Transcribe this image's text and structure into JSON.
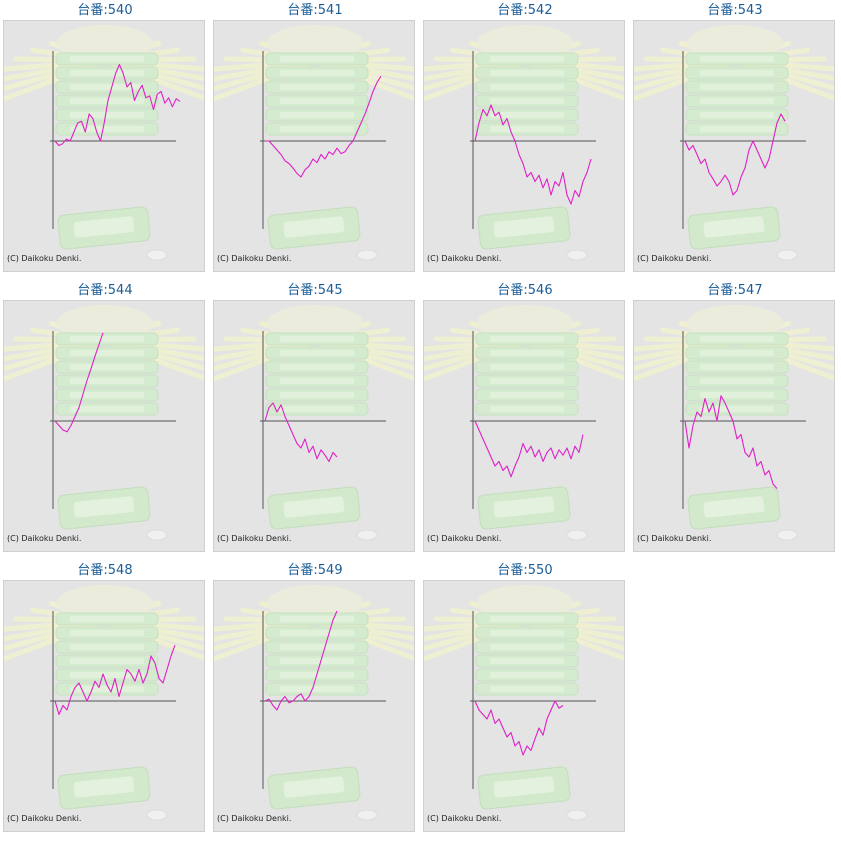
{
  "page": {
    "background": "#ffffff",
    "title_color": "#1b5d96",
    "line_color": "#e020c8"
  },
  "machines": [
    {
      "label": "台番:540",
      "credit": "(C) Daikoku Denki."
    },
    {
      "label": "台番:541",
      "credit": "(C) Daikoku Denki."
    },
    {
      "label": "台番:542",
      "credit": "(C) Daikoku Denki."
    },
    {
      "label": "台番:543",
      "credit": "(C) Daikoku Denki."
    },
    {
      "label": "台番:544",
      "credit": "(C) Daikoku Denki."
    },
    {
      "label": "台番:545",
      "credit": "(C) Daikoku Denki."
    },
    {
      "label": "台番:546",
      "credit": "(C) Daikoku Denki."
    },
    {
      "label": "台番:547",
      "credit": "(C) Daikoku Denki."
    },
    {
      "label": "台番:548",
      "credit": "(C) Daikoku Denki."
    },
    {
      "label": "台番:549",
      "credit": "(C) Daikoku Denki."
    },
    {
      "label": "台番:550",
      "credit": "(C) Daikoku Denki."
    }
  ],
  "chart_data": [
    {
      "type": "line",
      "title": "台番:540",
      "ylim": [
        -1.0,
        1.0
      ],
      "y": [
        0.0,
        -0.05,
        -0.03,
        0.02,
        0.0,
        0.1,
        0.2,
        0.22,
        0.1,
        0.3,
        0.25,
        0.1,
        0.0,
        0.2,
        0.45,
        0.6,
        0.75,
        0.85,
        0.75,
        0.6,
        0.65,
        0.45,
        0.55,
        0.62,
        0.48,
        0.5,
        0.35,
        0.52,
        0.55,
        0.42,
        0.48,
        0.38,
        0.47,
        0.44
      ]
    },
    {
      "type": "line",
      "title": "台番:541",
      "ylim": [
        -1.0,
        1.0
      ],
      "y": [
        0.0,
        0.0,
        -0.05,
        -0.1,
        -0.15,
        -0.22,
        -0.25,
        -0.3,
        -0.36,
        -0.4,
        -0.32,
        -0.28,
        -0.2,
        -0.24,
        -0.15,
        -0.2,
        -0.12,
        -0.15,
        -0.08,
        -0.14,
        -0.12,
        -0.05,
        0.0,
        0.1,
        0.2,
        0.3,
        0.42,
        0.55,
        0.65,
        0.72
      ]
    },
    {
      "type": "line",
      "title": "台番:542",
      "ylim": [
        -1.0,
        1.0
      ],
      "y": [
        0.0,
        0.2,
        0.35,
        0.28,
        0.4,
        0.28,
        0.32,
        0.18,
        0.25,
        0.1,
        0.0,
        -0.15,
        -0.25,
        -0.4,
        -0.35,
        -0.45,
        -0.38,
        -0.52,
        -0.42,
        -0.6,
        -0.45,
        -0.5,
        -0.35,
        -0.6,
        -0.7,
        -0.55,
        -0.62,
        -0.45,
        -0.35,
        -0.2
      ]
    },
    {
      "type": "line",
      "title": "台番:543",
      "ylim": [
        -1.0,
        1.0
      ],
      "y": [
        0.0,
        -0.1,
        -0.05,
        -0.15,
        -0.25,
        -0.2,
        -0.35,
        -0.42,
        -0.5,
        -0.45,
        -0.38,
        -0.45,
        -0.6,
        -0.55,
        -0.4,
        -0.3,
        -0.1,
        0.0,
        -0.1,
        -0.2,
        -0.3,
        -0.2,
        0.0,
        0.2,
        0.3,
        0.22
      ]
    },
    {
      "type": "line",
      "title": "台番:544",
      "ylim": [
        -1.0,
        1.0
      ],
      "y": [
        0.0,
        -0.05,
        -0.1,
        -0.12,
        -0.05,
        0.05,
        0.15,
        0.3,
        0.45,
        0.58,
        0.72,
        0.85,
        0.98
      ]
    },
    {
      "type": "line",
      "title": "台番:545",
      "ylim": [
        -1.0,
        1.0
      ],
      "y": [
        0.0,
        0.15,
        0.2,
        0.1,
        0.18,
        0.05,
        -0.05,
        -0.15,
        -0.25,
        -0.3,
        -0.2,
        -0.35,
        -0.28,
        -0.42,
        -0.32,
        -0.38,
        -0.45,
        -0.35,
        -0.4
      ]
    },
    {
      "type": "line",
      "title": "台番:546",
      "ylim": [
        -1.0,
        1.0
      ],
      "y": [
        0.0,
        -0.1,
        -0.2,
        -0.3,
        -0.4,
        -0.5,
        -0.45,
        -0.55,
        -0.5,
        -0.62,
        -0.5,
        -0.4,
        -0.25,
        -0.35,
        -0.28,
        -0.4,
        -0.32,
        -0.45,
        -0.35,
        -0.3,
        -0.42,
        -0.32,
        -0.38,
        -0.3,
        -0.42,
        -0.28,
        -0.35,
        -0.15
      ]
    },
    {
      "type": "line",
      "title": "台番:547",
      "ylim": [
        -1.0,
        1.0
      ],
      "y": [
        0.0,
        -0.3,
        -0.05,
        0.1,
        0.05,
        0.25,
        0.1,
        0.2,
        0.0,
        0.28,
        0.2,
        0.1,
        0.0,
        -0.2,
        -0.15,
        -0.35,
        -0.4,
        -0.3,
        -0.5,
        -0.45,
        -0.6,
        -0.55,
        -0.7,
        -0.75
      ]
    },
    {
      "type": "line",
      "title": "台番:548",
      "ylim": [
        -1.0,
        1.0
      ],
      "y": [
        0.0,
        -0.15,
        -0.05,
        -0.1,
        0.05,
        0.15,
        0.2,
        0.1,
        0.0,
        0.1,
        0.22,
        0.15,
        0.3,
        0.18,
        0.1,
        0.25,
        0.05,
        0.2,
        0.35,
        0.3,
        0.22,
        0.35,
        0.2,
        0.3,
        0.5,
        0.42,
        0.25,
        0.2,
        0.35,
        0.5,
        0.62
      ]
    },
    {
      "type": "line",
      "title": "台番:549",
      "ylim": [
        -1.0,
        1.0
      ],
      "y": [
        0.0,
        0.02,
        -0.05,
        -0.1,
        0.0,
        0.05,
        -0.02,
        0.0,
        0.05,
        0.08,
        0.0,
        0.05,
        0.15,
        0.3,
        0.45,
        0.6,
        0.75,
        0.9,
        1.0
      ]
    },
    {
      "type": "line",
      "title": "台番:550",
      "ylim": [
        -1.0,
        1.0
      ],
      "y": [
        0.0,
        -0.1,
        -0.15,
        -0.2,
        -0.1,
        -0.25,
        -0.2,
        -0.3,
        -0.4,
        -0.35,
        -0.5,
        -0.45,
        -0.6,
        -0.5,
        -0.55,
        -0.42,
        -0.3,
        -0.38,
        -0.2,
        -0.1,
        0.0,
        -0.08,
        -0.05
      ]
    }
  ]
}
